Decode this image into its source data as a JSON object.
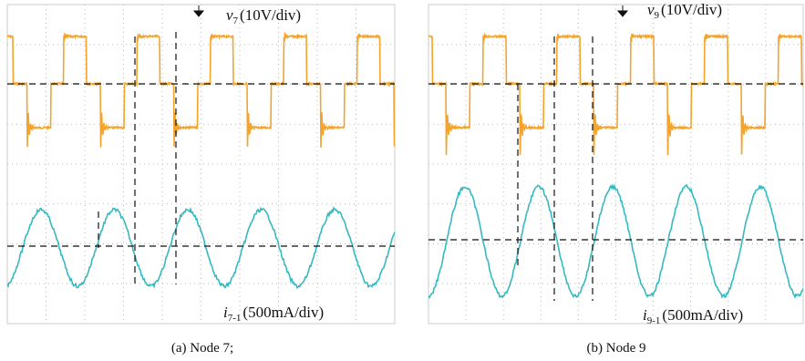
{
  "panels": [
    {
      "voltage_label": {
        "symbol": "v",
        "subscript": "7",
        "scale": "(10V/div)"
      },
      "current_label": {
        "symbol": "i",
        "subscript": "7-1",
        "scale": "(500mA/div)"
      },
      "caption": "(a) Node 7;"
    },
    {
      "voltage_label": {
        "symbol": "v",
        "subscript": "9",
        "scale": "(10V/div)"
      },
      "current_label": {
        "symbol": "i",
        "subscript": "9-1",
        "scale": "(500mA/div)"
      },
      "caption": "(b) Node 9"
    }
  ]
}
